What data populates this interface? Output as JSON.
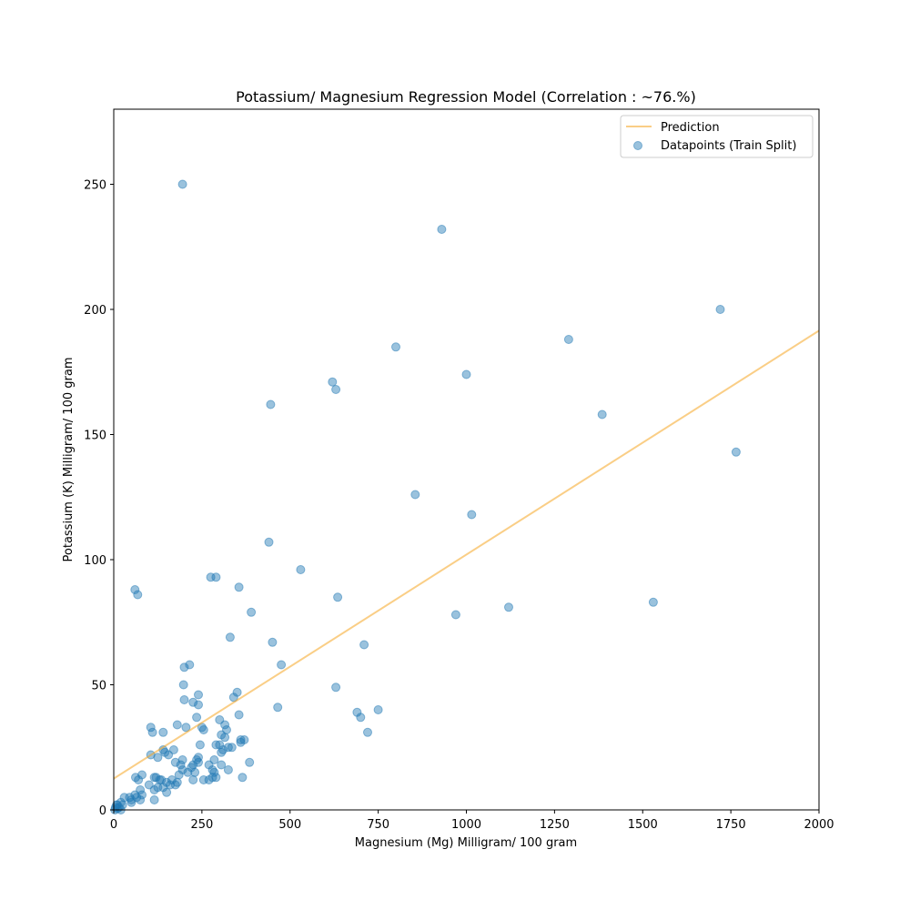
{
  "chart_data": {
    "type": "scatter",
    "title": "Potassium/ Magnesium Regression Model (Correlation : ~76.%)",
    "xlabel": "Magnesium (Mg) Milligram/ 100 gram",
    "ylabel": "Potassium (K) Milligram/ 100 gram",
    "xlim": [
      0,
      2000
    ],
    "ylim": [
      0,
      280
    ],
    "xticks": [
      0,
      250,
      500,
      750,
      1000,
      1250,
      1500,
      1750,
      2000
    ],
    "yticks": [
      0,
      50,
      100,
      150,
      200,
      250
    ],
    "grid": false,
    "legend_position": "top-right",
    "legend": {
      "prediction_label": "Prediction",
      "points_label": "Datapoints (Train Split)"
    },
    "colors": {
      "prediction": "#f5a623",
      "points": "#1f77b4"
    },
    "prediction_line": {
      "x": [
        0,
        2000
      ],
      "y": [
        12.5,
        191.5
      ]
    },
    "points": [
      [
        195,
        250
      ],
      [
        930,
        232
      ],
      [
        1720,
        200
      ],
      [
        1290,
        188
      ],
      [
        800,
        185
      ],
      [
        1000,
        174
      ],
      [
        620,
        171
      ],
      [
        630,
        168
      ],
      [
        445,
        162
      ],
      [
        1385,
        158
      ],
      [
        1765,
        143
      ],
      [
        855,
        126
      ],
      [
        1015,
        118
      ],
      [
        440,
        107
      ],
      [
        530,
        96
      ],
      [
        290,
        93
      ],
      [
        275,
        93
      ],
      [
        355,
        89
      ],
      [
        60,
        88
      ],
      [
        68,
        86
      ],
      [
        635,
        85
      ],
      [
        1120,
        81
      ],
      [
        1530,
        83
      ],
      [
        390,
        79
      ],
      [
        970,
        78
      ],
      [
        330,
        69
      ],
      [
        450,
        67
      ],
      [
        710,
        66
      ],
      [
        475,
        58
      ],
      [
        215,
        58
      ],
      [
        200,
        57
      ],
      [
        630,
        49
      ],
      [
        198,
        50
      ],
      [
        350,
        47
      ],
      [
        340,
        45
      ],
      [
        240,
        46
      ],
      [
        200,
        44
      ],
      [
        240,
        42
      ],
      [
        225,
        43
      ],
      [
        465,
        41
      ],
      [
        690,
        39
      ],
      [
        750,
        40
      ],
      [
        700,
        37
      ],
      [
        355,
        38
      ],
      [
        235,
        37
      ],
      [
        180,
        34
      ],
      [
        300,
        36
      ],
      [
        315,
        34
      ],
      [
        105,
        33
      ],
      [
        205,
        33
      ],
      [
        110,
        31
      ],
      [
        140,
        31
      ],
      [
        250,
        33
      ],
      [
        255,
        32
      ],
      [
        320,
        32
      ],
      [
        720,
        31
      ],
      [
        305,
        30
      ],
      [
        315,
        29
      ],
      [
        370,
        28
      ],
      [
        360,
        28
      ],
      [
        360,
        27
      ],
      [
        290,
        26
      ],
      [
        300,
        26
      ],
      [
        245,
        26
      ],
      [
        325,
        25
      ],
      [
        335,
        25
      ],
      [
        310,
        24
      ],
      [
        305,
        23
      ],
      [
        140,
        24
      ],
      [
        145,
        23
      ],
      [
        170,
        24
      ],
      [
        155,
        22
      ],
      [
        105,
        22
      ],
      [
        125,
        21
      ],
      [
        240,
        21
      ],
      [
        235,
        20
      ],
      [
        285,
        20
      ],
      [
        385,
        19
      ],
      [
        195,
        20
      ],
      [
        175,
        19
      ],
      [
        190,
        18
      ],
      [
        240,
        19
      ],
      [
        270,
        18
      ],
      [
        305,
        18
      ],
      [
        220,
        17
      ],
      [
        225,
        18
      ],
      [
        195,
        16
      ],
      [
        280,
        16
      ],
      [
        285,
        15
      ],
      [
        210,
        15
      ],
      [
        185,
        14
      ],
      [
        230,
        15
      ],
      [
        325,
        16
      ],
      [
        80,
        14
      ],
      [
        115,
        13
      ],
      [
        130,
        12
      ],
      [
        120,
        13
      ],
      [
        135,
        12
      ],
      [
        165,
        12
      ],
      [
        255,
        12
      ],
      [
        225,
        12
      ],
      [
        270,
        12
      ],
      [
        280,
        13
      ],
      [
        290,
        13
      ],
      [
        365,
        13
      ],
      [
        62,
        13
      ],
      [
        70,
        12
      ],
      [
        100,
        10
      ],
      [
        150,
        11
      ],
      [
        160,
        10
      ],
      [
        175,
        10
      ],
      [
        180,
        11
      ],
      [
        125,
        9
      ],
      [
        140,
        9
      ],
      [
        115,
        8
      ],
      [
        75,
        8
      ],
      [
        150,
        7
      ],
      [
        60,
        6
      ],
      [
        80,
        6
      ],
      [
        65,
        5
      ],
      [
        45,
        5
      ],
      [
        30,
        5
      ],
      [
        50,
        4
      ],
      [
        115,
        4
      ],
      [
        75,
        4
      ],
      [
        50,
        3
      ],
      [
        20,
        3
      ],
      [
        25,
        2
      ],
      [
        10,
        2
      ],
      [
        15,
        1
      ],
      [
        5,
        1
      ],
      [
        10,
        0.5
      ],
      [
        3,
        0
      ],
      [
        20,
        0
      ],
      [
        8,
        2
      ]
    ]
  }
}
